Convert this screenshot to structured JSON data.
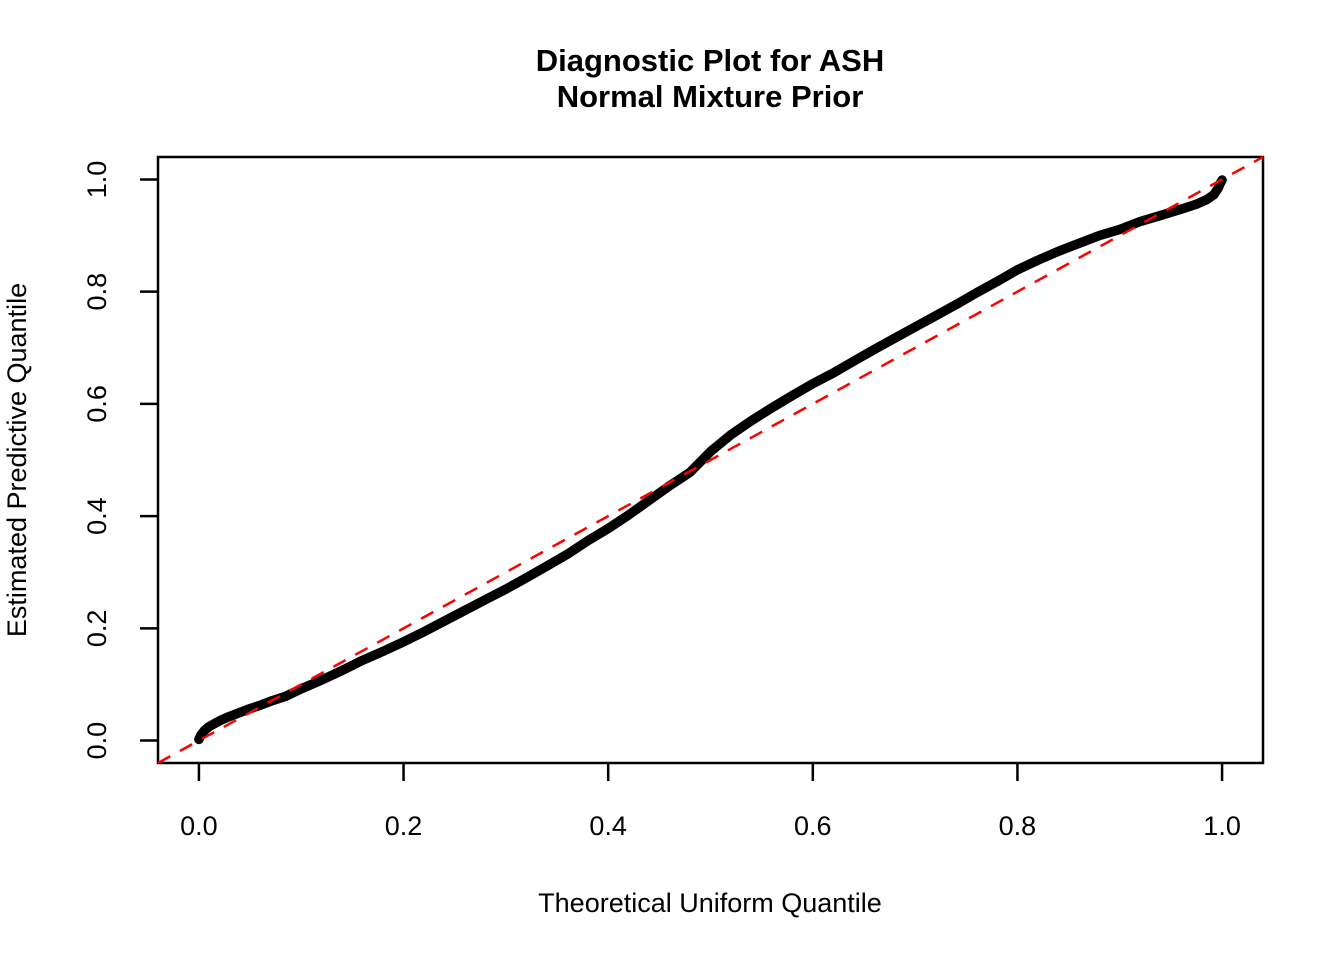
{
  "figure": {
    "background": "#ffffff"
  },
  "chart_data": {
    "type": "scatter",
    "title_lines": [
      "Diagnostic Plot for ASH",
      "Normal Mixture Prior"
    ],
    "xlabel": "Theoretical Uniform Quantile",
    "ylabel": "Estimated Predictive Quantile",
    "xlim": [
      -0.04,
      1.04
    ],
    "ylim": [
      -0.04,
      1.04
    ],
    "x_ticks": [
      0,
      0.2,
      0.4,
      0.6,
      0.8,
      1
    ],
    "y_ticks": [
      0,
      0.2,
      0.4,
      0.6,
      0.8,
      1
    ],
    "x_tick_labels": [
      "0.0",
      "0.2",
      "0.4",
      "0.6",
      "0.8",
      "1.0"
    ],
    "y_tick_labels": [
      "0.0",
      "0.2",
      "0.4",
      "0.6",
      "0.8",
      "1.0"
    ],
    "grid": false,
    "legend": "none",
    "colors": {
      "points": "#000000",
      "reference_line": "#FF0000",
      "axis": "#000000",
      "background": "#ffffff"
    },
    "series": [
      {
        "name": "estimated-predictive-quantiles",
        "type": "points-curve",
        "color": "#000000",
        "points": [
          [
            0.0,
            0.002
          ],
          [
            0.002,
            0.01
          ],
          [
            0.005,
            0.017
          ],
          [
            0.01,
            0.025
          ],
          [
            0.02,
            0.035
          ],
          [
            0.03,
            0.043
          ],
          [
            0.04,
            0.05
          ],
          [
            0.05,
            0.057
          ],
          [
            0.06,
            0.063
          ],
          [
            0.07,
            0.07
          ],
          [
            0.085,
            0.079
          ],
          [
            0.1,
            0.092
          ],
          [
            0.12,
            0.108
          ],
          [
            0.14,
            0.125
          ],
          [
            0.16,
            0.143
          ],
          [
            0.18,
            0.159
          ],
          [
            0.2,
            0.176
          ],
          [
            0.22,
            0.194
          ],
          [
            0.24,
            0.213
          ],
          [
            0.26,
            0.232
          ],
          [
            0.28,
            0.251
          ],
          [
            0.3,
            0.27
          ],
          [
            0.32,
            0.29
          ],
          [
            0.34,
            0.311
          ],
          [
            0.36,
            0.332
          ],
          [
            0.38,
            0.356
          ],
          [
            0.4,
            0.378
          ],
          [
            0.42,
            0.402
          ],
          [
            0.44,
            0.428
          ],
          [
            0.46,
            0.454
          ],
          [
            0.48,
            0.478
          ],
          [
            0.5,
            0.515
          ],
          [
            0.52,
            0.545
          ],
          [
            0.54,
            0.57
          ],
          [
            0.56,
            0.593
          ],
          [
            0.58,
            0.615
          ],
          [
            0.6,
            0.636
          ],
          [
            0.62,
            0.655
          ],
          [
            0.64,
            0.676
          ],
          [
            0.66,
            0.697
          ],
          [
            0.68,
            0.717
          ],
          [
            0.7,
            0.737
          ],
          [
            0.72,
            0.757
          ],
          [
            0.74,
            0.777
          ],
          [
            0.76,
            0.798
          ],
          [
            0.78,
            0.818
          ],
          [
            0.8,
            0.839
          ],
          [
            0.82,
            0.856
          ],
          [
            0.84,
            0.872
          ],
          [
            0.86,
            0.886
          ],
          [
            0.88,
            0.9
          ],
          [
            0.9,
            0.911
          ],
          [
            0.92,
            0.925
          ],
          [
            0.94,
            0.936
          ],
          [
            0.96,
            0.947
          ],
          [
            0.975,
            0.956
          ],
          [
            0.985,
            0.964
          ],
          [
            0.992,
            0.973
          ],
          [
            0.996,
            0.984
          ],
          [
            0.998,
            0.992
          ],
          [
            1.0,
            0.999
          ]
        ]
      },
      {
        "name": "reference-diagonal-y-equals-x",
        "type": "dashed-line",
        "color": "#FF0000",
        "points": [
          [
            -0.04,
            -0.04
          ],
          [
            1.04,
            1.04
          ]
        ]
      }
    ]
  }
}
